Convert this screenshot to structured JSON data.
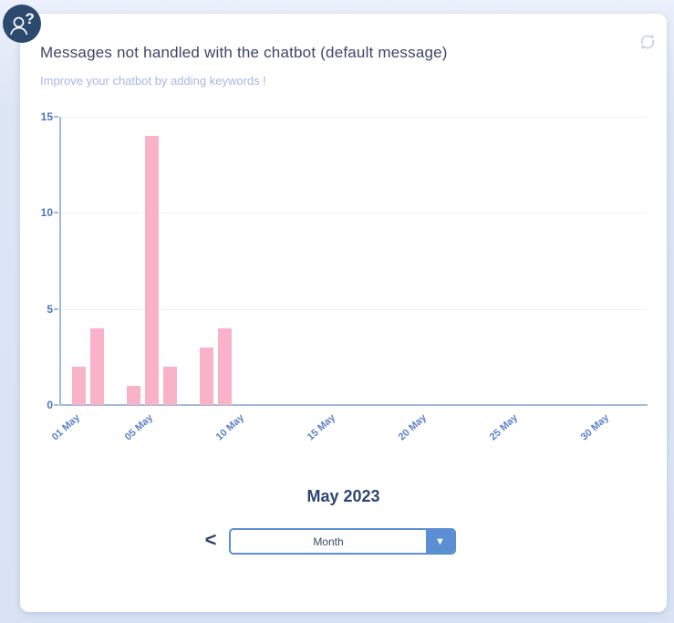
{
  "header": {
    "title": "Messages not handled with the chatbot (default message)",
    "subtitle": "Improve your chatbot by adding keywords !"
  },
  "help_badge": {
    "icon": "person-question-icon"
  },
  "toolbar": {
    "refresh_icon": "refresh-icon"
  },
  "footer": {
    "period_label": "May 2023",
    "prev_button": "<",
    "granularity_select": {
      "value": "Month"
    },
    "dropdown_arrow": "▼"
  },
  "chart_data": {
    "type": "bar",
    "title": "Messages not handled with the chatbot (default message)",
    "x_unit": "day of May 2023",
    "points": [
      {
        "x": "01 May",
        "day": 1,
        "y": 2
      },
      {
        "x": "02 May",
        "day": 2,
        "y": 4
      },
      {
        "x": "04 May",
        "day": 4,
        "y": 1
      },
      {
        "x": "05 May",
        "day": 5,
        "y": 14
      },
      {
        "x": "06 May",
        "day": 6,
        "y": 2
      },
      {
        "x": "08 May",
        "day": 8,
        "y": 3
      },
      {
        "x": "09 May",
        "day": 9,
        "y": 4
      }
    ],
    "x_axis_ticks": [
      {
        "label": "01 May",
        "day": 1
      },
      {
        "label": "05 May",
        "day": 5
      },
      {
        "label": "10 May",
        "day": 10
      },
      {
        "label": "15 May",
        "day": 15
      },
      {
        "label": "20 May",
        "day": 20
      },
      {
        "label": "25 May",
        "day": 25
      },
      {
        "label": "30 May",
        "day": 30
      }
    ],
    "y_axis_ticks": [
      0,
      5,
      10,
      15
    ],
    "ylim": [
      0,
      15
    ],
    "days_in_range": 31,
    "legend": "none",
    "grid": "faint-horizontal-lines",
    "bar_color": "#fab2c9",
    "axis_color": "#a3b9dc",
    "x_label_color": "#5b80cb",
    "y_label_color": "#4d73c4"
  },
  "colors": {
    "page_bg": "#dde6f5",
    "card_bg": "#ffffff",
    "title_text": "#3e4663",
    "subtitle_text": "#a9b6e4",
    "period_text": "#2e4672",
    "select_accent": "#5b8ed2",
    "badge_bg": "#2c4a6f",
    "refresh_icon": "#c9cdd9"
  }
}
